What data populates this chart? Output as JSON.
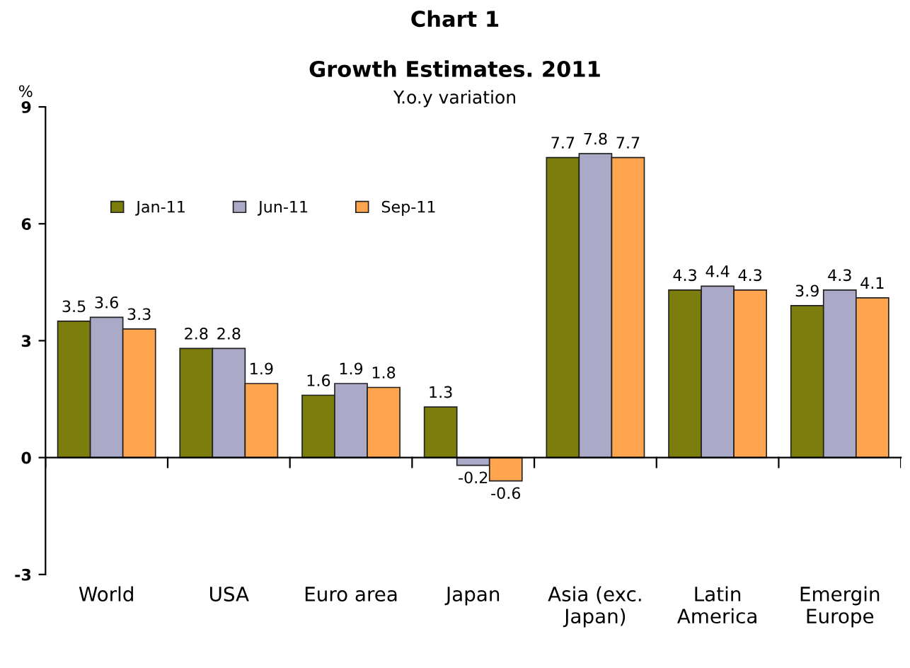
{
  "chart_data": {
    "type": "bar",
    "title": "Chart 1",
    "subtitle": "Growth Estimates. 2011",
    "ylabel": "%",
    "annotations": [
      "Y.o.y variation"
    ],
    "categories": [
      "World",
      "USA",
      "Euro area",
      "Japan",
      "Asia (exc.\nJapan)",
      "Latin\nAmerica",
      "Emergin\nEurope"
    ],
    "series": [
      {
        "name": "Jan-11",
        "color": "#7b7d0c",
        "values": [
          3.5,
          2.8,
          1.6,
          1.3,
          7.7,
          4.3,
          3.9
        ]
      },
      {
        "name": "Jun-11",
        "color": "#aaaac8",
        "values": [
          3.6,
          2.8,
          1.9,
          -0.2,
          7.8,
          4.4,
          4.3
        ]
      },
      {
        "name": "Sep-11",
        "color": "#ffa54f",
        "values": [
          3.3,
          1.9,
          1.8,
          -0.6,
          7.7,
          4.3,
          4.1
        ]
      }
    ],
    "ylim": [
      -3,
      9
    ],
    "yticks": [
      -3,
      0,
      3,
      6,
      9
    ],
    "data_labels": true,
    "legend": "top left"
  }
}
